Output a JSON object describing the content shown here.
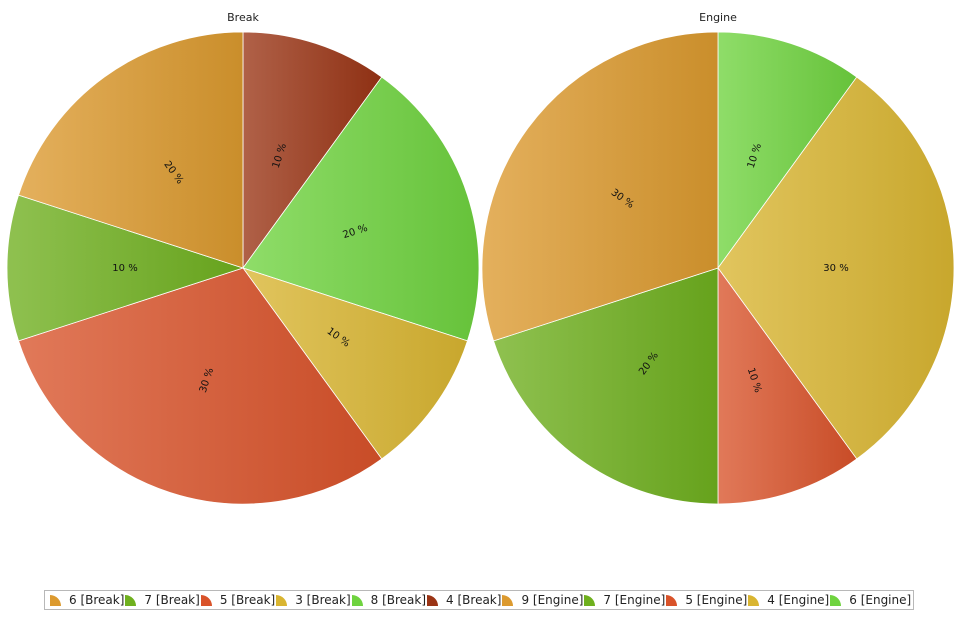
{
  "chart_data": [
    {
      "type": "pie",
      "title": "Break",
      "slices": [
        {
          "key": "4",
          "label": "10 %",
          "value": 10,
          "color": "#9a3415"
        },
        {
          "key": "8",
          "label": "20 %",
          "value": 20,
          "color": "#6fd33f"
        },
        {
          "key": "3",
          "label": "10 %",
          "value": 10,
          "color": "#d9b531"
        },
        {
          "key": "5",
          "label": "30 %",
          "value": 30,
          "color": "#d9532a"
        },
        {
          "key": "7",
          "label": "10 %",
          "value": 10,
          "color": "#6fb01e"
        },
        {
          "key": "6",
          "label": "20 %",
          "value": 20,
          "color": "#dc9a2f"
        }
      ]
    },
    {
      "type": "pie",
      "title": "Engine",
      "slices": [
        {
          "key": "6",
          "label": "10 %",
          "value": 10,
          "color": "#6fd33f"
        },
        {
          "key": "4",
          "label": "30 %",
          "value": 30,
          "color": "#d9b531"
        },
        {
          "key": "5",
          "label": "10 %",
          "value": 10,
          "color": "#d9532a"
        },
        {
          "key": "7",
          "label": "20 %",
          "value": 20,
          "color": "#6fb01e"
        },
        {
          "key": "9",
          "label": "30 %",
          "value": 30,
          "color": "#dc9a2f"
        }
      ]
    }
  ],
  "legend": {
    "placement": "bottom",
    "items": [
      {
        "label": "6 [Break]",
        "color": "#dc9a2f"
      },
      {
        "label": "7 [Break]",
        "color": "#6fb01e"
      },
      {
        "label": "5 [Break]",
        "color": "#d9532a"
      },
      {
        "label": "3 [Break]",
        "color": "#d9b531"
      },
      {
        "label": "8 [Break]",
        "color": "#6fd33f"
      },
      {
        "label": "4 [Break]",
        "color": "#9a3415"
      },
      {
        "label": "9 [Engine]",
        "color": "#dc9a2f"
      },
      {
        "label": "7 [Engine]",
        "color": "#6fb01e"
      },
      {
        "label": "5 [Engine]",
        "color": "#d9532a"
      },
      {
        "label": "4 [Engine]",
        "color": "#d9b531"
      },
      {
        "label": "6 [Engine]",
        "color": "#6fd33f"
      }
    ]
  }
}
